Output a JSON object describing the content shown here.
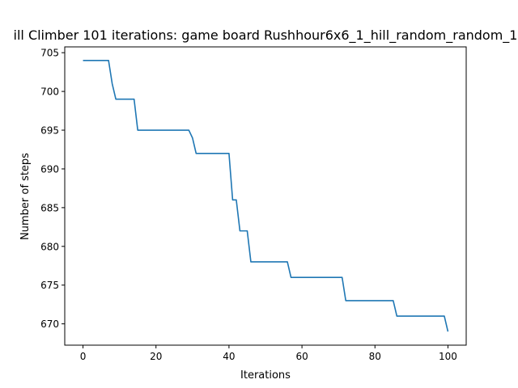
{
  "chart_data": {
    "type": "line",
    "title": "ill Climber 101 iterations: game board Rushhour6x6_1_hill_random_random_1",
    "xlabel": "Iterations",
    "ylabel": "Number of steps",
    "xlim": [
      -5,
      105
    ],
    "ylim": [
      667.25,
      705.75
    ],
    "xticks": [
      0,
      20,
      40,
      60,
      80,
      100
    ],
    "yticks": [
      670,
      675,
      680,
      685,
      690,
      695,
      700,
      705
    ],
    "grid": false,
    "legend": "none",
    "series": [
      {
        "color": "#1f77b4",
        "x": [
          0,
          1,
          2,
          3,
          4,
          5,
          6,
          7,
          8,
          9,
          10,
          11,
          12,
          13,
          14,
          15,
          16,
          17,
          18,
          19,
          20,
          21,
          22,
          23,
          24,
          25,
          26,
          27,
          28,
          29,
          30,
          31,
          32,
          33,
          34,
          35,
          36,
          37,
          38,
          39,
          40,
          41,
          42,
          43,
          44,
          45,
          46,
          47,
          48,
          49,
          50,
          51,
          52,
          53,
          54,
          55,
          56,
          57,
          58,
          59,
          60,
          61,
          62,
          63,
          64,
          65,
          66,
          67,
          68,
          69,
          70,
          71,
          72,
          73,
          74,
          75,
          76,
          77,
          78,
          79,
          80,
          81,
          82,
          83,
          84,
          85,
          86,
          87,
          88,
          89,
          90,
          91,
          92,
          93,
          94,
          95,
          96,
          97,
          98,
          99,
          100
        ],
        "y": [
          704,
          704,
          704,
          704,
          704,
          704,
          704,
          704,
          701,
          699,
          699,
          699,
          699,
          699,
          699,
          695,
          695,
          695,
          695,
          695,
          695,
          695,
          695,
          695,
          695,
          695,
          695,
          695,
          695,
          695,
          694,
          692,
          692,
          692,
          692,
          692,
          692,
          692,
          692,
          692,
          692,
          686,
          686,
          682,
          682,
          682,
          678,
          678,
          678,
          678,
          678,
          678,
          678,
          678,
          678,
          678,
          678,
          676,
          676,
          676,
          676,
          676,
          676,
          676,
          676,
          676,
          676,
          676,
          676,
          676,
          676,
          676,
          673,
          673,
          673,
          673,
          673,
          673,
          673,
          673,
          673,
          673,
          673,
          673,
          673,
          673,
          671,
          671,
          671,
          671,
          671,
          671,
          671,
          671,
          671,
          671,
          671,
          671,
          671,
          671,
          669
        ]
      }
    ]
  }
}
